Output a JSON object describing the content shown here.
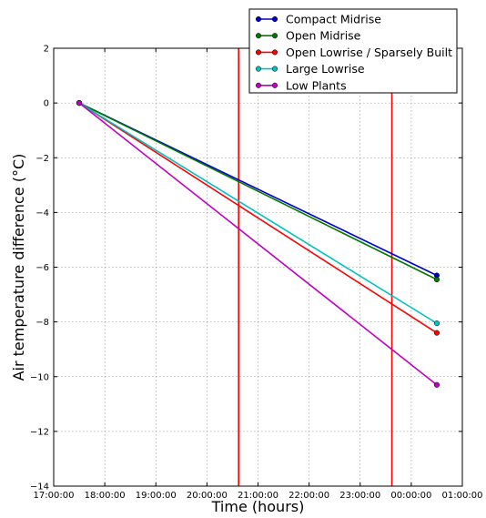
{
  "chart_data": {
    "type": "line",
    "xlabel": "Time (hours)",
    "ylabel": "Air temperature difference ($^\\circ C$)",
    "ylabel_display": "Air temperature difference (°C)",
    "xlim": [
      "17:00:00",
      "01:00:00"
    ],
    "xlim_hours": [
      17,
      25
    ],
    "ylim": [
      -14,
      2
    ],
    "x_ticks": [
      "17:00:00",
      "18:00:00",
      "19:00:00",
      "20:00:00",
      "21:00:00",
      "22:00:00",
      "23:00:00",
      "00:00:00",
      "01:00:00"
    ],
    "x_ticks_hours": [
      17,
      18,
      19,
      20,
      21,
      22,
      23,
      24,
      25
    ],
    "y_ticks": [
      "2",
      "0",
      "−2",
      "−4",
      "−6",
      "−8",
      "−10",
      "−12",
      "−14"
    ],
    "y_ticks_values": [
      2,
      0,
      -2,
      -4,
      -6,
      -8,
      -10,
      -12,
      -14
    ],
    "grid": true,
    "legend_position": "top-right",
    "vertical_lines": [
      {
        "x_hours": 20.62,
        "color": "#ff0000"
      },
      {
        "x_hours": 23.62,
        "color": "#ff0000"
      }
    ],
    "series": [
      {
        "name": "Compact Midrise",
        "color": "#0000cc",
        "x_hours": [
          17.5,
          24.5
        ],
        "values": [
          0,
          -6.3
        ]
      },
      {
        "name": "Open Midrise",
        "color": "#007a00",
        "x_hours": [
          17.5,
          24.5
        ],
        "values": [
          0,
          -6.45
        ]
      },
      {
        "name": "Open Lowrise / Sparsely Built",
        "color": "#ff0000",
        "x_hours": [
          17.5,
          24.5
        ],
        "values": [
          0,
          -8.4
        ]
      },
      {
        "name": "Large Lowrise",
        "color": "#00c0c0",
        "x_hours": [
          17.5,
          24.5
        ],
        "values": [
          0,
          -8.05
        ]
      },
      {
        "name": "Low Plants",
        "color": "#c000c0",
        "x_hours": [
          17.5,
          24.5
        ],
        "values": [
          0,
          -10.3
        ]
      }
    ]
  }
}
